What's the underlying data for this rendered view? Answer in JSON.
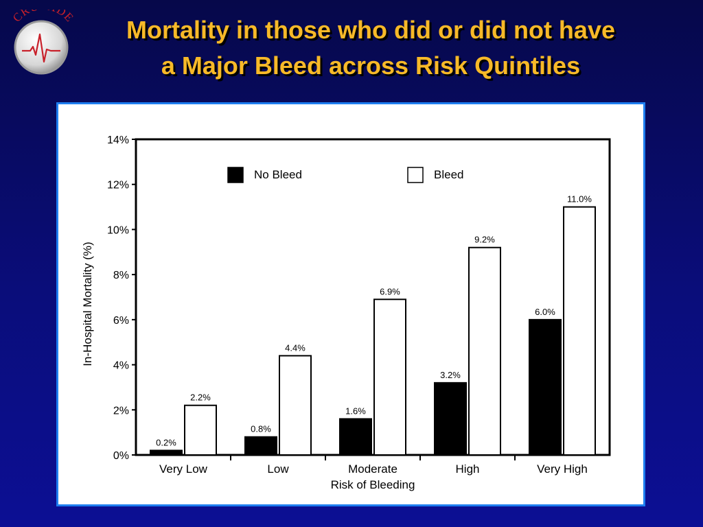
{
  "title": {
    "line1": "Mortality in those who did or did not have",
    "line2": "a Major Bleed across Risk Quintiles"
  },
  "logo": {
    "text": "CRUSADE",
    "icon": "ecg-heartbeat-icon"
  },
  "colors": {
    "background": "#0a0d7a",
    "title": "#f7b928",
    "panel_border": "#1e7ef0",
    "logo_text": "#c8202a"
  },
  "chart_data": {
    "type": "bar",
    "xlabel": "Risk of Bleeding",
    "ylabel": "In-Hospital Mortality (%)",
    "ylim": [
      0,
      14
    ],
    "yticks": [
      0,
      2,
      4,
      6,
      8,
      10,
      12,
      14
    ],
    "ytick_labels": [
      "0%",
      "2%",
      "4%",
      "6%",
      "8%",
      "10%",
      "12%",
      "14%"
    ],
    "categories": [
      "Very Low",
      "Low",
      "Moderate",
      "High",
      "Very High"
    ],
    "legend_position": "top",
    "grid": false,
    "series": [
      {
        "name": "No Bleed",
        "color": "#000000",
        "values": [
          0.2,
          0.8,
          1.6,
          3.2,
          6.0
        ],
        "labels": [
          "0.2%",
          "0.8%",
          "1.6%",
          "3.2%",
          "6.0%"
        ]
      },
      {
        "name": "Bleed",
        "color": "#ffffff",
        "values": [
          2.2,
          4.4,
          6.9,
          9.2,
          11.0
        ],
        "labels": [
          "2.2%",
          "4.4%",
          "6.9%",
          "9.2%",
          "11.0%"
        ]
      }
    ]
  }
}
